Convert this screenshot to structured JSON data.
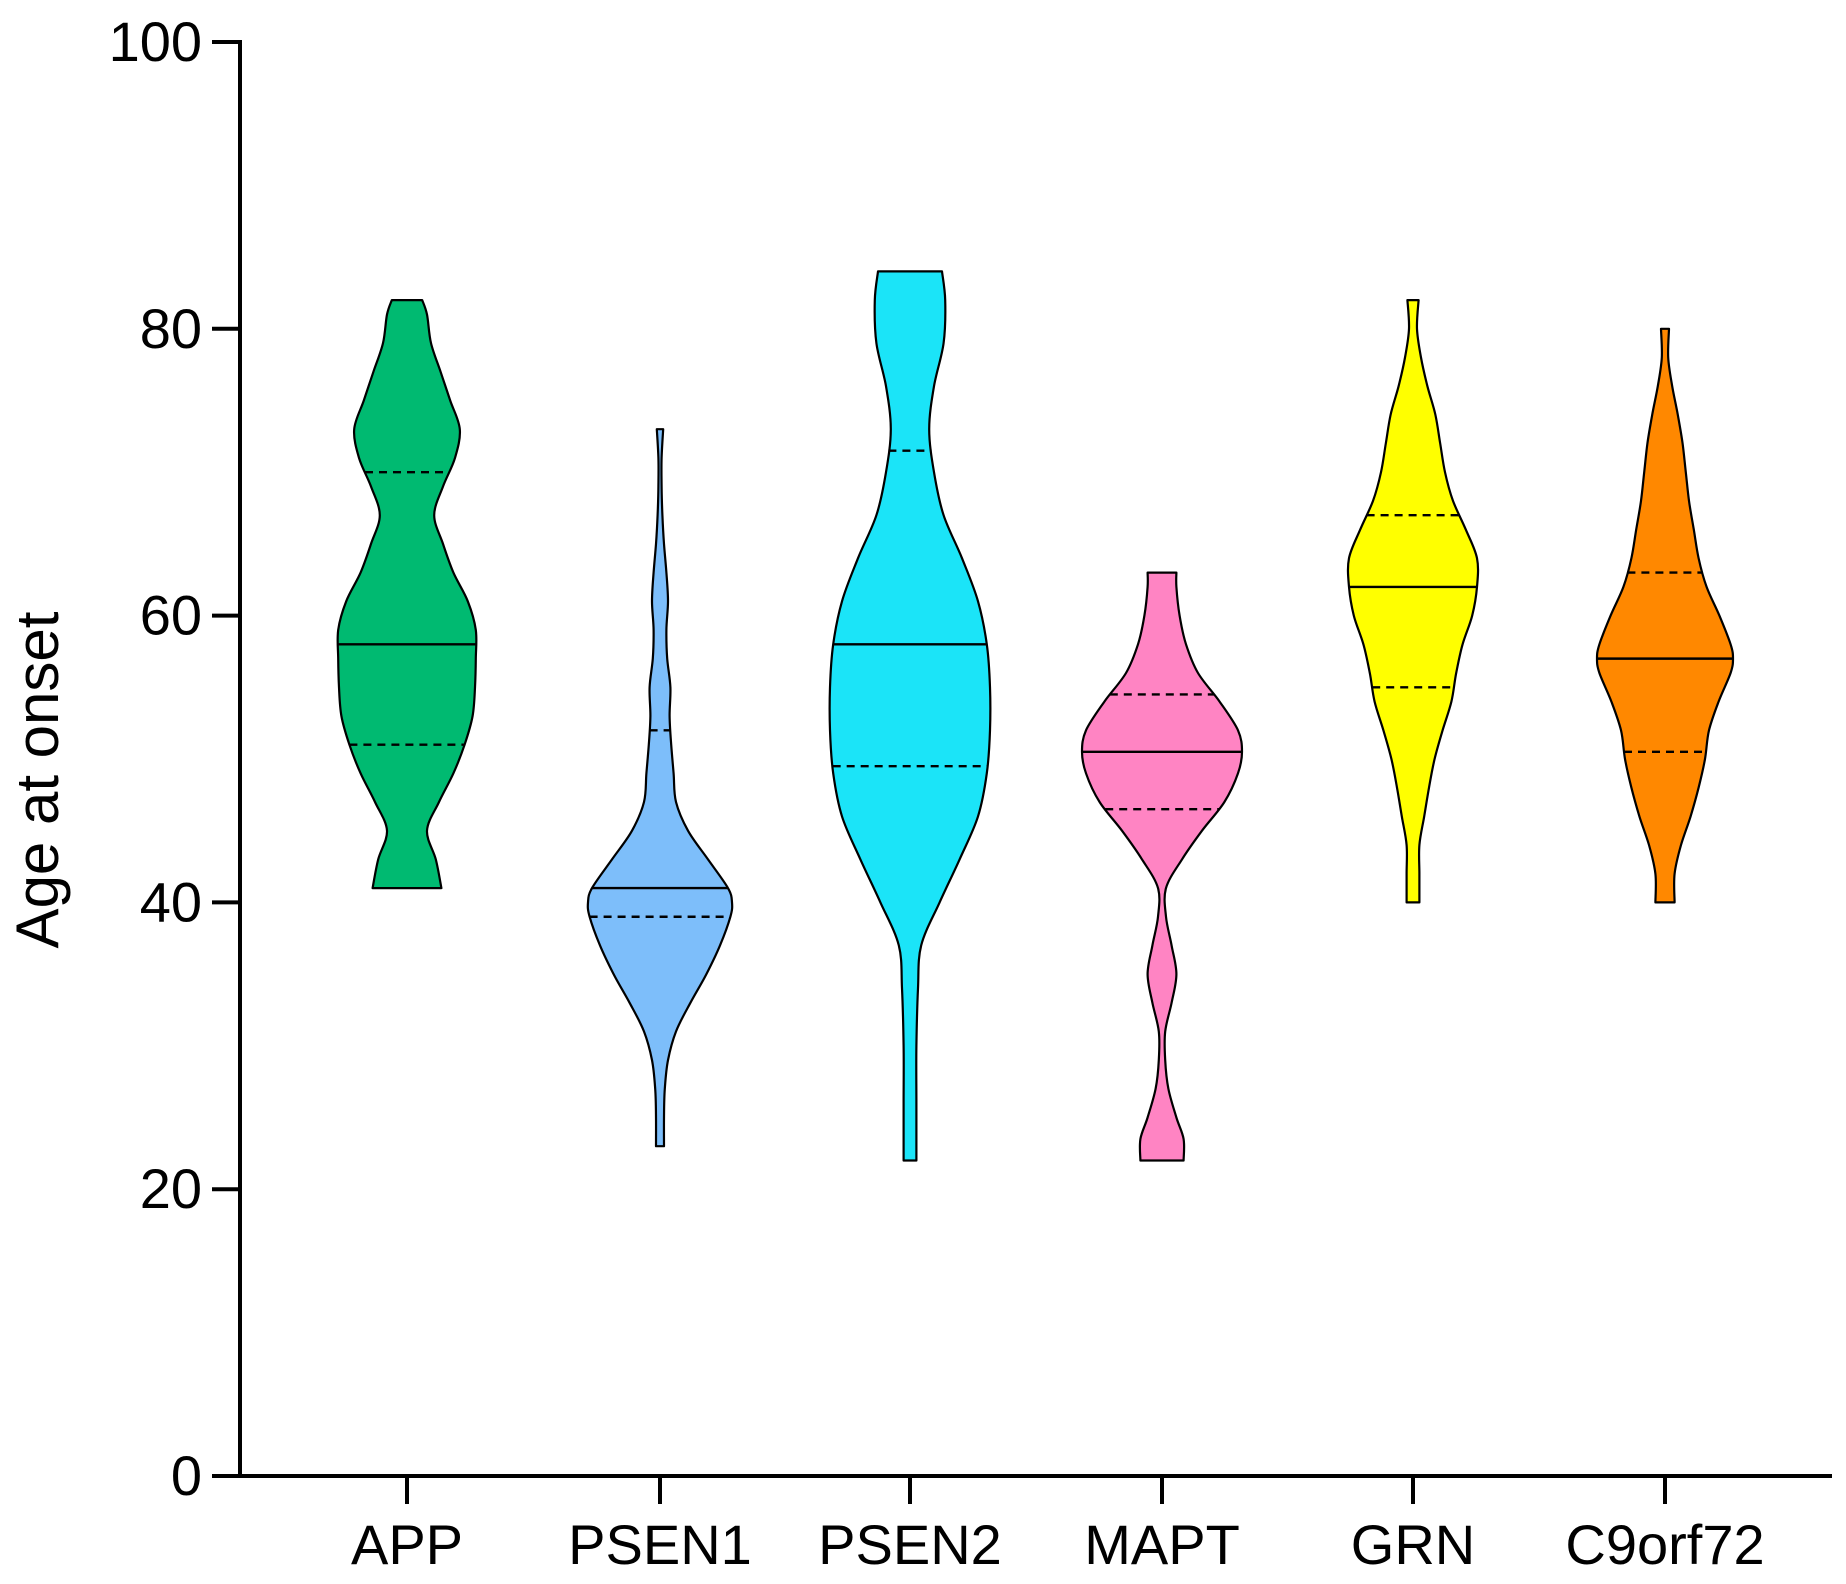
{
  "chart_data": {
    "type": "violin",
    "title": "",
    "xlabel": "",
    "ylabel": "Age at onset",
    "ylim": [
      0,
      100
    ],
    "yticks": [
      0,
      20,
      40,
      60,
      80,
      100
    ],
    "grid": false,
    "categories": [
      "APP",
      "PSEN1",
      "PSEN2",
      "MAPT",
      "GRN",
      "C9orf72"
    ],
    "series": [
      {
        "name": "APP",
        "color": "#00BA71",
        "min": 41,
        "max": 82,
        "q1": 51,
        "median": 58,
        "q3": 70,
        "density": [
          [
            41,
            0.43
          ],
          [
            43,
            0.36
          ],
          [
            45,
            0.25
          ],
          [
            47,
            0.4
          ],
          [
            49,
            0.58
          ],
          [
            51,
            0.72
          ],
          [
            53,
            0.82
          ],
          [
            55,
            0.85
          ],
          [
            57,
            0.86
          ],
          [
            59,
            0.86
          ],
          [
            61,
            0.76
          ],
          [
            63,
            0.58
          ],
          [
            65,
            0.45
          ],
          [
            67,
            0.34
          ],
          [
            69,
            0.45
          ],
          [
            71,
            0.6
          ],
          [
            73,
            0.66
          ],
          [
            75,
            0.54
          ],
          [
            77,
            0.42
          ],
          [
            79,
            0.3
          ],
          [
            81,
            0.25
          ],
          [
            82,
            0.19
          ]
        ]
      },
      {
        "name": "PSEN1",
        "color": "#7DBEFA",
        "min": 23,
        "max": 73,
        "q1": 39,
        "median": 41,
        "q3": 52,
        "density": [
          [
            23,
            0.05
          ],
          [
            25,
            0.05
          ],
          [
            27,
            0.06
          ],
          [
            29,
            0.1
          ],
          [
            31,
            0.2
          ],
          [
            33,
            0.38
          ],
          [
            35,
            0.58
          ],
          [
            37,
            0.75
          ],
          [
            39,
            0.88
          ],
          [
            40,
            0.9
          ],
          [
            41,
            0.85
          ],
          [
            43,
            0.6
          ],
          [
            45,
            0.35
          ],
          [
            47,
            0.2
          ],
          [
            49,
            0.17
          ],
          [
            51,
            0.14
          ],
          [
            53,
            0.12
          ],
          [
            55,
            0.13
          ],
          [
            57,
            0.09
          ],
          [
            59,
            0.08
          ],
          [
            61,
            0.1
          ],
          [
            63,
            0.08
          ],
          [
            65,
            0.05
          ],
          [
            67,
            0.03
          ],
          [
            69,
            0.02
          ],
          [
            71,
            0.02
          ],
          [
            73,
            0.04
          ]
        ]
      },
      {
        "name": "PSEN2",
        "color": "#1BE4F8",
        "min": 22,
        "max": 84,
        "q1": 49.5,
        "median": 58,
        "q3": 71.5,
        "density": [
          [
            22,
            0.08
          ],
          [
            26,
            0.08
          ],
          [
            30,
            0.08
          ],
          [
            34,
            0.1
          ],
          [
            37,
            0.14
          ],
          [
            40,
            0.37
          ],
          [
            43,
            0.62
          ],
          [
            46,
            0.85
          ],
          [
            49,
            0.96
          ],
          [
            52,
            1.0
          ],
          [
            55,
            1.0
          ],
          [
            58,
            0.96
          ],
          [
            61,
            0.85
          ],
          [
            64,
            0.65
          ],
          [
            67,
            0.42
          ],
          [
            70,
            0.3
          ],
          [
            73,
            0.24
          ],
          [
            76,
            0.3
          ],
          [
            79,
            0.42
          ],
          [
            82,
            0.44
          ],
          [
            84,
            0.4
          ]
        ]
      },
      {
        "name": "MAPT",
        "color": "#FF84C3",
        "min": 22,
        "max": 63,
        "q1": 46.5,
        "median": 50.5,
        "q3": 54.5,
        "density": [
          [
            22,
            0.27
          ],
          [
            23.5,
            0.27
          ],
          [
            25,
            0.18
          ],
          [
            27,
            0.08
          ],
          [
            29,
            0.04
          ],
          [
            31,
            0.04
          ],
          [
            33,
            0.12
          ],
          [
            35,
            0.18
          ],
          [
            37,
            0.12
          ],
          [
            39,
            0.05
          ],
          [
            41,
            0.05
          ],
          [
            43,
            0.25
          ],
          [
            45,
            0.5
          ],
          [
            47,
            0.78
          ],
          [
            49,
            0.95
          ],
          [
            50.5,
            1.0
          ],
          [
            52,
            0.95
          ],
          [
            54,
            0.72
          ],
          [
            56,
            0.45
          ],
          [
            58,
            0.3
          ],
          [
            60,
            0.22
          ],
          [
            62,
            0.18
          ],
          [
            63,
            0.18
          ]
        ]
      },
      {
        "name": "GRN",
        "color": "#FFFF00",
        "min": 40,
        "max": 82,
        "q1": 55,
        "median": 62,
        "q3": 67,
        "density": [
          [
            40,
            0.08
          ],
          [
            42,
            0.08
          ],
          [
            44,
            0.08
          ],
          [
            46,
            0.14
          ],
          [
            48,
            0.2
          ],
          [
            50,
            0.27
          ],
          [
            52,
            0.37
          ],
          [
            54,
            0.48
          ],
          [
            56,
            0.54
          ],
          [
            58,
            0.62
          ],
          [
            60,
            0.74
          ],
          [
            62,
            0.8
          ],
          [
            64,
            0.8
          ],
          [
            66,
            0.66
          ],
          [
            68,
            0.5
          ],
          [
            70,
            0.4
          ],
          [
            72,
            0.34
          ],
          [
            74,
            0.28
          ],
          [
            76,
            0.18
          ],
          [
            78,
            0.1
          ],
          [
            80,
            0.05
          ],
          [
            82,
            0.07
          ]
        ]
      },
      {
        "name": "C9orf72",
        "color": "#FF8800",
        "min": 40,
        "max": 80,
        "q1": 50.5,
        "median": 57,
        "q3": 63,
        "density": [
          [
            40,
            0.12
          ],
          [
            42,
            0.12
          ],
          [
            44,
            0.2
          ],
          [
            46,
            0.32
          ],
          [
            48,
            0.42
          ],
          [
            50,
            0.5
          ],
          [
            52,
            0.55
          ],
          [
            54,
            0.67
          ],
          [
            56,
            0.82
          ],
          [
            57,
            0.85
          ],
          [
            58,
            0.82
          ],
          [
            60,
            0.68
          ],
          [
            62,
            0.52
          ],
          [
            64,
            0.42
          ],
          [
            66,
            0.36
          ],
          [
            68,
            0.3
          ],
          [
            70,
            0.26
          ],
          [
            72,
            0.22
          ],
          [
            74,
            0.16
          ],
          [
            76,
            0.09
          ],
          [
            78,
            0.04
          ],
          [
            80,
            0.05
          ]
        ]
      }
    ]
  }
}
